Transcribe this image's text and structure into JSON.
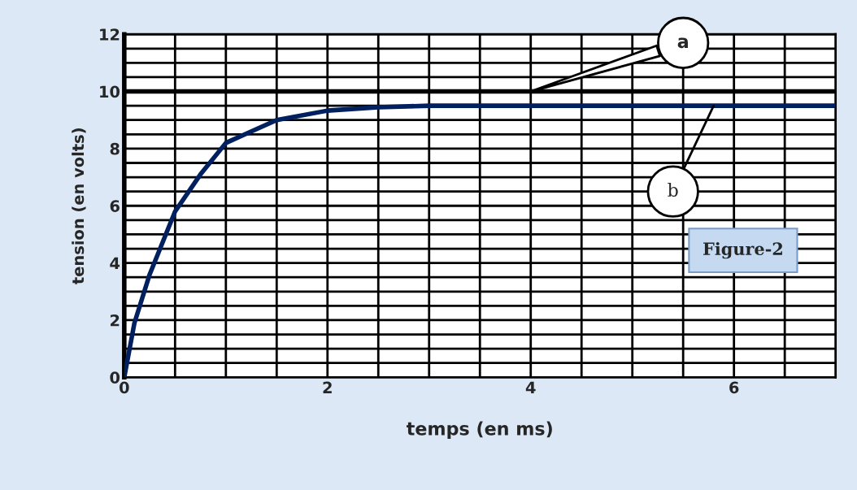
{
  "chart_data": {
    "type": "line",
    "xlabel": "temps (en ms)",
    "ylabel": "tension (en volts)",
    "x": [
      0,
      0.1,
      0.25,
      0.5,
      0.75,
      1.0,
      1.25,
      1.5,
      2.0,
      2.5,
      3.0,
      4.0,
      5.0,
      6.0,
      7.0
    ],
    "series": [
      {
        "color": "#002060",
        "values": [
          0,
          1.9,
          3.6,
          5.8,
          7.1,
          8.2,
          8.6,
          9.0,
          9.33,
          9.45,
          9.5,
          9.5,
          9.5,
          9.5,
          9.5
        ]
      }
    ],
    "xlim": [
      0,
      7
    ],
    "ylim": [
      0,
      12
    ],
    "xticks": [
      0,
      {
        "value": 0.5,
        "label": null
      },
      {
        "value": 1,
        "label": null
      },
      {
        "value": 1.5,
        "label": null
      },
      2,
      {
        "value": 2.5,
        "label": null
      },
      {
        "value": 3,
        "label": null
      },
      {
        "value": 3.5,
        "label": null
      },
      4,
      {
        "value": 4.5,
        "label": null
      },
      {
        "value": 5,
        "label": null
      },
      {
        "value": 5.5,
        "label": null
      },
      6,
      {
        "value": 6.5,
        "label": null
      }
    ],
    "yticks": [
      0,
      {
        "value": 0.5,
        "label": null
      },
      {
        "value": 1,
        "label": null
      },
      {
        "value": 1.5,
        "label": null
      },
      2,
      {
        "value": 2.5,
        "label": null
      },
      {
        "value": 3,
        "label": null
      },
      {
        "value": 3.5,
        "label": null
      },
      4,
      {
        "value": 4.5,
        "label": null
      },
      {
        "value": 5,
        "label": null
      },
      {
        "value": 5.5,
        "label": null
      },
      6,
      {
        "value": 6.5,
        "label": null
      },
      {
        "value": 7,
        "label": null
      },
      {
        "value": 7.5,
        "label": null
      },
      8,
      {
        "value": 8.5,
        "label": null
      },
      {
        "value": 9,
        "label": null
      },
      {
        "value": 9.5,
        "label": null
      },
      10,
      {
        "value": 10.5,
        "label": null
      },
      {
        "value": 11,
        "label": null
      },
      {
        "value": 11.5,
        "label": null
      },
      12
    ],
    "grid": true,
    "line_style": "solid",
    "marker": "none",
    "ref_lines": [
      {
        "axis": "y",
        "value": 10,
        "color": "#000000"
      }
    ],
    "annotations": [
      {
        "text": "a",
        "x": 4,
        "y": 10
      },
      {
        "text": "b",
        "x": 5.8,
        "y": 9.5
      },
      "Figure-2"
    ]
  }
}
